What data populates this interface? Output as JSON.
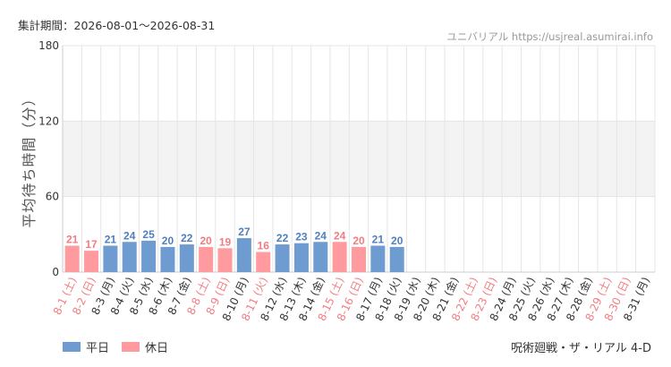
{
  "header": {
    "period": "集計期間：2026-08-01～2026-08-31",
    "source": "ユニバリアル  https://usjreal.asumirai.info"
  },
  "footer": {
    "attraction": "呪術廻戦・ザ・リアル 4-D"
  },
  "colors": {
    "weekday": "#6e9bd0",
    "weekday_label": "#4f7fbf",
    "holiday": "#ff9a9e",
    "holiday_label": "#f27c82",
    "grid": "#e5e5e5",
    "band": "#f3f3f3",
    "axis_text": "#333333"
  },
  "chart_data": {
    "type": "bar",
    "ylabel": "平均待ち時間（分）",
    "ylim": [
      0,
      180
    ],
    "yticks": [
      0,
      60,
      120,
      180
    ],
    "legend": [
      {
        "name": "平日",
        "key": "weekday"
      },
      {
        "name": "休日",
        "key": "holiday"
      }
    ],
    "categories": [
      "8-1 (土)",
      "8-2 (日)",
      "8-3 (月)",
      "8-4 (火)",
      "8-5 (水)",
      "8-6 (木)",
      "8-7 (金)",
      "8-8 (土)",
      "8-9 (日)",
      "8-10 (月)",
      "8-11 (火)",
      "8-12 (水)",
      "8-13 (木)",
      "8-14 (金)",
      "8-15 (土)",
      "8-16 (日)",
      "8-17 (月)",
      "8-18 (火)",
      "8-19 (水)",
      "8-20 (木)",
      "8-21 (金)",
      "8-22 (土)",
      "8-23 (日)",
      "8-24 (月)",
      "8-25 (火)",
      "8-26 (水)",
      "8-27 (木)",
      "8-28 (金)",
      "8-29 (土)",
      "8-30 (日)",
      "8-31 (月)"
    ],
    "values": [
      21,
      17,
      21,
      24,
      25,
      20,
      22,
      20,
      19,
      27,
      16,
      22,
      23,
      24,
      24,
      20,
      21,
      20,
      null,
      null,
      null,
      null,
      null,
      null,
      null,
      null,
      null,
      null,
      null,
      null,
      null
    ],
    "holiday": [
      true,
      true,
      false,
      false,
      false,
      false,
      false,
      true,
      true,
      false,
      true,
      false,
      false,
      false,
      true,
      true,
      false,
      false,
      false,
      false,
      false,
      true,
      true,
      false,
      false,
      false,
      false,
      false,
      true,
      true,
      false
    ]
  }
}
